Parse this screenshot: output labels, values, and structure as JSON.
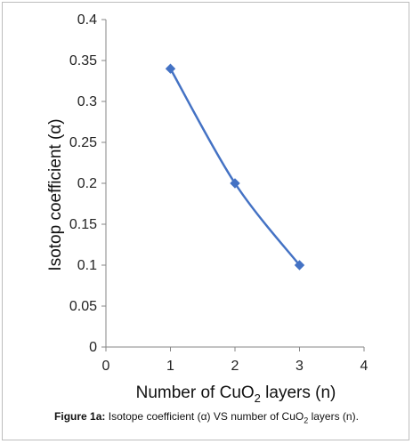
{
  "chart_data": {
    "type": "scatter",
    "title": "",
    "xlabel_prefix": "Number of   CuO",
    "xlabel_sub": "2",
    "xlabel_suffix": " layers (n)",
    "ylabel": "Isotop coefficient (α)",
    "xlim": [
      0,
      4
    ],
    "ylim": [
      0,
      0.4
    ],
    "x_ticks": [
      "0",
      "1",
      "2",
      "3",
      "4"
    ],
    "y_ticks": [
      "0",
      "0.05",
      "0.1",
      "0.15",
      "0.2",
      "0.25",
      "0.3",
      "0.35",
      "0.4"
    ],
    "grid": false,
    "smooth_line": true,
    "series": [
      {
        "x": [
          1,
          2,
          3
        ],
        "y": [
          0.34,
          0.2,
          0.1
        ],
        "color": "#4472C4",
        "marker": "diamond"
      }
    ]
  },
  "caption": {
    "label": "Figure 1a:",
    "text_pre": " Isotope coefficient (α) VS  number of CuO",
    "sub": "2",
    "text_post": " layers (n)."
  }
}
